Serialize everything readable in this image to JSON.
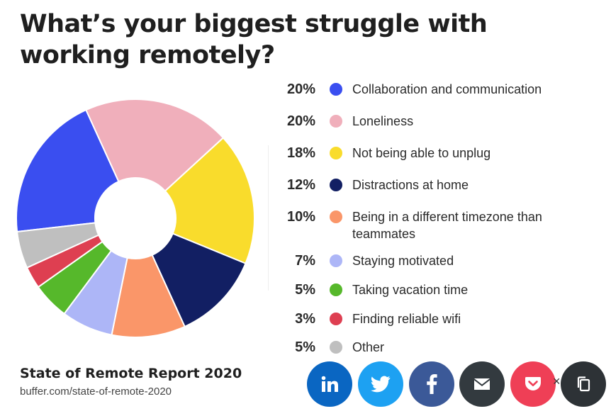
{
  "title": "What’s your biggest struggle with working remotely?",
  "chart_data": {
    "type": "pie",
    "donut": true,
    "title": "What’s your biggest struggle with working remotely?",
    "legend_position": "right",
    "slices": [
      {
        "label": "Collaboration and communication",
        "pct_label": "20%",
        "value": 20,
        "color": "#3a4ef0"
      },
      {
        "label": "Loneliness",
        "pct_label": "20%",
        "value": 20,
        "color": "#f0afbb"
      },
      {
        "label": "Not being able to unplug",
        "pct_label": "18%",
        "value": 18,
        "color": "#f9dc2c"
      },
      {
        "label": "Distractions at home",
        "pct_label": "12%",
        "value": 12,
        "color": "#121f63"
      },
      {
        "label": "Being in a different timezone than teammates",
        "pct_label": "10%",
        "value": 10,
        "color": "#fa9669"
      },
      {
        "label": "Staying motivated",
        "pct_label": "7%",
        "value": 7,
        "color": "#adb6f7"
      },
      {
        "label": "Taking vacation time",
        "pct_label": "5%",
        "value": 5,
        "color": "#56b82b"
      },
      {
        "label": "Finding reliable wifi",
        "pct_label": "3%",
        "value": 3,
        "color": "#de3f51"
      },
      {
        "label": "Other",
        "pct_label": "5%",
        "value": 5,
        "color": "#bfbfbf"
      }
    ]
  },
  "source": {
    "title": "State of Remote Report 2020",
    "url": "buffer.com/state-of-remote-2020"
  },
  "share_buttons": [
    {
      "name": "linkedin",
      "icon": "linkedin-icon",
      "color": "#0a66c2"
    },
    {
      "name": "twitter",
      "icon": "twitter-icon",
      "color": "#1da1f2"
    },
    {
      "name": "facebook",
      "icon": "facebook-icon",
      "color": "#3b5998"
    },
    {
      "name": "email",
      "icon": "envelope-icon",
      "color": "#333a3f"
    },
    {
      "name": "pocket",
      "icon": "pocket-icon",
      "color": "#ef3f56"
    },
    {
      "name": "copy",
      "icon": "copy-icon",
      "color": "#2d3236"
    }
  ],
  "close_symbol": "×"
}
